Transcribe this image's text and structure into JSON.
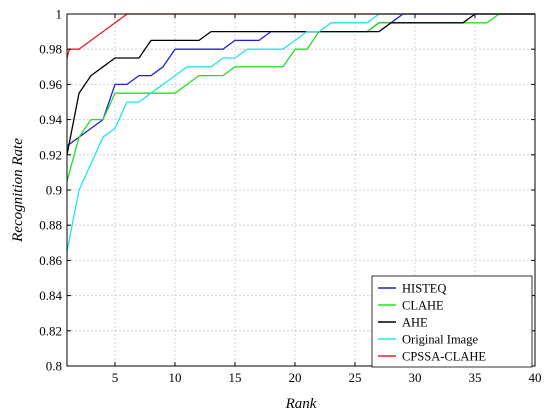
{
  "chart_data": {
    "type": "line",
    "xlabel": "Rank",
    "ylabel": "Recognition Rate",
    "xlim": [
      1,
      40
    ],
    "ylim": [
      0.8,
      1.0
    ],
    "xticks": [
      5,
      10,
      15,
      20,
      25,
      30,
      35,
      40
    ],
    "xtick_labels": [
      "5",
      "10",
      "15",
      "20",
      "25",
      "30",
      "35",
      "40"
    ],
    "yticks": [
      0.8,
      0.82,
      0.84,
      0.86,
      0.88,
      0.9,
      0.92,
      0.94,
      0.96,
      0.98,
      1.0
    ],
    "ytick_labels": [
      "0.8",
      "0.82",
      "0.84",
      "0.86",
      "0.88",
      "0.9",
      "0.92",
      "0.94",
      "0.96",
      "0.98",
      "1"
    ],
    "grid": true,
    "legend_position": "bottom-right",
    "series": [
      {
        "name": "HISTEQ",
        "color": "#1f1fd6",
        "points": [
          [
            1,
            0.925
          ],
          [
            2,
            0.93
          ],
          [
            3,
            0.935
          ],
          [
            4,
            0.94
          ],
          [
            5,
            0.96
          ],
          [
            6,
            0.96
          ],
          [
            7,
            0.965
          ],
          [
            8,
            0.965
          ],
          [
            9,
            0.97
          ],
          [
            10,
            0.98
          ],
          [
            11,
            0.98
          ],
          [
            12,
            0.98
          ],
          [
            13,
            0.98
          ],
          [
            14,
            0.98
          ],
          [
            15,
            0.985
          ],
          [
            16,
            0.985
          ],
          [
            17,
            0.985
          ],
          [
            18,
            0.99
          ],
          [
            19,
            0.99
          ],
          [
            20,
            0.99
          ],
          [
            21,
            0.99
          ],
          [
            22,
            0.99
          ],
          [
            23,
            0.99
          ],
          [
            24,
            0.99
          ],
          [
            25,
            0.99
          ],
          [
            26,
            0.99
          ],
          [
            27,
            0.995
          ],
          [
            28,
            0.995
          ],
          [
            29,
            1.0
          ],
          [
            30,
            1.0
          ],
          [
            35,
            1.0
          ],
          [
            40,
            1.0
          ]
        ]
      },
      {
        "name": "CLAHE",
        "color": "#22e022",
        "points": [
          [
            1,
            0.905
          ],
          [
            2,
            0.93
          ],
          [
            3,
            0.94
          ],
          [
            4,
            0.94
          ],
          [
            5,
            0.955
          ],
          [
            6,
            0.955
          ],
          [
            7,
            0.955
          ],
          [
            8,
            0.955
          ],
          [
            9,
            0.955
          ],
          [
            10,
            0.955
          ],
          [
            11,
            0.96
          ],
          [
            12,
            0.965
          ],
          [
            13,
            0.965
          ],
          [
            14,
            0.965
          ],
          [
            15,
            0.97
          ],
          [
            16,
            0.97
          ],
          [
            17,
            0.97
          ],
          [
            18,
            0.97
          ],
          [
            19,
            0.97
          ],
          [
            20,
            0.98
          ],
          [
            21,
            0.98
          ],
          [
            22,
            0.99
          ],
          [
            23,
            0.99
          ],
          [
            24,
            0.99
          ],
          [
            25,
            0.99
          ],
          [
            26,
            0.99
          ],
          [
            27,
            0.995
          ],
          [
            28,
            0.995
          ],
          [
            29,
            0.995
          ],
          [
            30,
            0.995
          ],
          [
            31,
            0.995
          ],
          [
            32,
            0.995
          ],
          [
            33,
            0.995
          ],
          [
            34,
            0.995
          ],
          [
            35,
            0.995
          ],
          [
            36,
            0.995
          ],
          [
            37,
            1.0
          ],
          [
            40,
            1.0
          ]
        ]
      },
      {
        "name": "AHE",
        "color": "#000000",
        "points": [
          [
            1,
            0.92
          ],
          [
            2,
            0.955
          ],
          [
            3,
            0.965
          ],
          [
            4,
            0.97
          ],
          [
            5,
            0.975
          ],
          [
            6,
            0.975
          ],
          [
            7,
            0.975
          ],
          [
            8,
            0.985
          ],
          [
            9,
            0.985
          ],
          [
            10,
            0.985
          ],
          [
            11,
            0.985
          ],
          [
            12,
            0.985
          ],
          [
            13,
            0.99
          ],
          [
            14,
            0.99
          ],
          [
            15,
            0.99
          ],
          [
            16,
            0.99
          ],
          [
            17,
            0.99
          ],
          [
            18,
            0.99
          ],
          [
            19,
            0.99
          ],
          [
            20,
            0.99
          ],
          [
            21,
            0.99
          ],
          [
            22,
            0.99
          ],
          [
            23,
            0.99
          ],
          [
            24,
            0.99
          ],
          [
            25,
            0.99
          ],
          [
            26,
            0.99
          ],
          [
            27,
            0.99
          ],
          [
            28,
            0.995
          ],
          [
            29,
            0.995
          ],
          [
            30,
            0.995
          ],
          [
            31,
            0.995
          ],
          [
            32,
            0.995
          ],
          [
            33,
            0.995
          ],
          [
            34,
            0.995
          ],
          [
            35,
            1.0
          ],
          [
            40,
            1.0
          ]
        ]
      },
      {
        "name": "Original Image",
        "color": "#22e5e5",
        "points": [
          [
            1,
            0.865
          ],
          [
            2,
            0.9
          ],
          [
            3,
            0.915
          ],
          [
            4,
            0.93
          ],
          [
            5,
            0.935
          ],
          [
            6,
            0.95
          ],
          [
            7,
            0.95
          ],
          [
            8,
            0.955
          ],
          [
            9,
            0.96
          ],
          [
            10,
            0.965
          ],
          [
            11,
            0.97
          ],
          [
            12,
            0.97
          ],
          [
            13,
            0.97
          ],
          [
            14,
            0.975
          ],
          [
            15,
            0.975
          ],
          [
            16,
            0.98
          ],
          [
            17,
            0.98
          ],
          [
            18,
            0.98
          ],
          [
            19,
            0.98
          ],
          [
            20,
            0.985
          ],
          [
            21,
            0.99
          ],
          [
            22,
            0.99
          ],
          [
            23,
            0.995
          ],
          [
            24,
            0.995
          ],
          [
            25,
            0.995
          ],
          [
            26,
            0.995
          ],
          [
            27,
            1.0
          ],
          [
            40,
            1.0
          ]
        ]
      },
      {
        "name": "CPSSA-CLAHE",
        "color": "#e82020",
        "points": [
          [
            1,
            0.975
          ],
          [
            1.2,
            0.98
          ],
          [
            2,
            0.98
          ],
          [
            3,
            0.985
          ],
          [
            4,
            0.99
          ],
          [
            5,
            0.995
          ],
          [
            6,
            1.0
          ],
          [
            40,
            1.0
          ]
        ]
      }
    ]
  }
}
